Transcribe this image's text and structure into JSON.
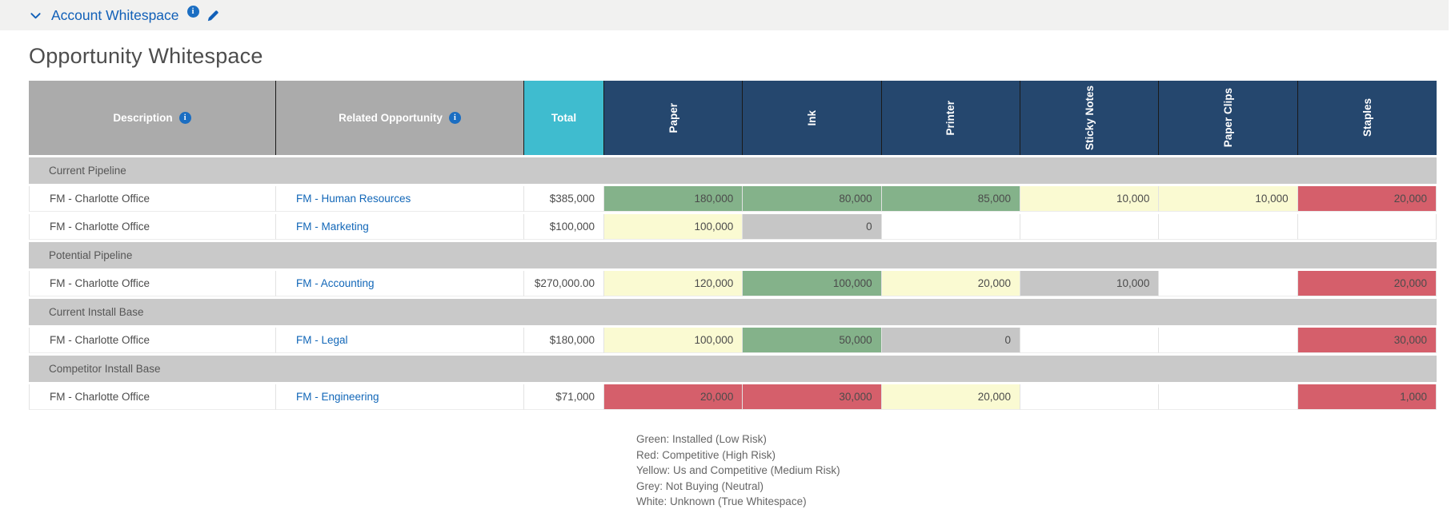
{
  "colors": {
    "accent_blue": "#1160B8",
    "info_blue": "#1B6EC2",
    "link_blue": "#1267B8",
    "header_grey": "#ABABAB",
    "section_grey": "#C9C9C9",
    "navy": "#25476E",
    "teal": "#3FBCCF",
    "green": "#84B28A",
    "red": "#D55F6B",
    "yellow": "#FAFAD2",
    "neutral_grey": "#C6C6C6"
  },
  "topbar": {
    "title": "Account Whitespace",
    "info_glyph": "i"
  },
  "page": {
    "title": "Opportunity Whitespace"
  },
  "table": {
    "columns": [
      {
        "label": "Description",
        "info": true
      },
      {
        "label": "Related Opportunity",
        "info": true
      },
      {
        "label": "Total",
        "info": false
      },
      {
        "label": "Paper",
        "info": false
      },
      {
        "label": "Ink",
        "info": false
      },
      {
        "label": "Printer",
        "info": false
      },
      {
        "label": "Sticky Notes",
        "info": false
      },
      {
        "label": "Paper Clips",
        "info": false
      },
      {
        "label": "Staples",
        "info": false
      }
    ],
    "groups": [
      {
        "section": "Current Pipeline",
        "rows": [
          {
            "description": "FM - Charlotte Office",
            "opportunity": "FM - Human Resources",
            "total": "$385,000",
            "values": [
              {
                "text": "180,000",
                "status": "green"
              },
              {
                "text": "80,000",
                "status": "green"
              },
              {
                "text": "85,000",
                "status": "green"
              },
              {
                "text": "10,000",
                "status": "yellow"
              },
              {
                "text": "10,000",
                "status": "yellow"
              },
              {
                "text": "20,000",
                "status": "red"
              }
            ]
          },
          {
            "description": "FM - Charlotte Office",
            "opportunity": "FM - Marketing",
            "total": "$100,000",
            "values": [
              {
                "text": "100,000",
                "status": "yellow"
              },
              {
                "text": "0",
                "status": "grey"
              },
              {
                "text": "",
                "status": "white"
              },
              {
                "text": "",
                "status": "white"
              },
              {
                "text": "",
                "status": "white"
              },
              {
                "text": "",
                "status": "white"
              }
            ]
          }
        ]
      },
      {
        "section": "Potential Pipeline",
        "rows": [
          {
            "description": "FM - Charlotte Office",
            "opportunity": "FM - Accounting",
            "total": "$270,000.00",
            "values": [
              {
                "text": "120,000",
                "status": "yellow"
              },
              {
                "text": "100,000",
                "status": "green"
              },
              {
                "text": "20,000",
                "status": "yellow"
              },
              {
                "text": "10,000",
                "status": "grey"
              },
              {
                "text": "",
                "status": "white"
              },
              {
                "text": "20,000",
                "status": "red"
              }
            ]
          }
        ]
      },
      {
        "section": "Current Install Base",
        "rows": [
          {
            "description": "FM - Charlotte Office",
            "opportunity": "FM - Legal",
            "total": "$180,000",
            "values": [
              {
                "text": "100,000",
                "status": "yellow"
              },
              {
                "text": "50,000",
                "status": "green"
              },
              {
                "text": "0",
                "status": "grey"
              },
              {
                "text": "",
                "status": "white"
              },
              {
                "text": "",
                "status": "white"
              },
              {
                "text": "30,000",
                "status": "red"
              }
            ]
          }
        ]
      },
      {
        "section": "Competitor Install Base",
        "rows": [
          {
            "description": "FM - Charlotte Office",
            "opportunity": "FM - Engineering",
            "total": "$71,000",
            "values": [
              {
                "text": "20,000",
                "status": "red"
              },
              {
                "text": "30,000",
                "status": "red"
              },
              {
                "text": "20,000",
                "status": "yellow"
              },
              {
                "text": "",
                "status": "white"
              },
              {
                "text": "",
                "status": "white"
              },
              {
                "text": "1,000",
                "status": "red"
              }
            ]
          }
        ]
      }
    ]
  },
  "legend": {
    "lines": [
      "Green: Installed (Low Risk)",
      "Red: Competitive (High Risk)",
      "Yellow: Us and Competitive (Medium Risk)",
      "Grey: Not Buying (Neutral)",
      "White: Unknown (True Whitespace)"
    ]
  }
}
